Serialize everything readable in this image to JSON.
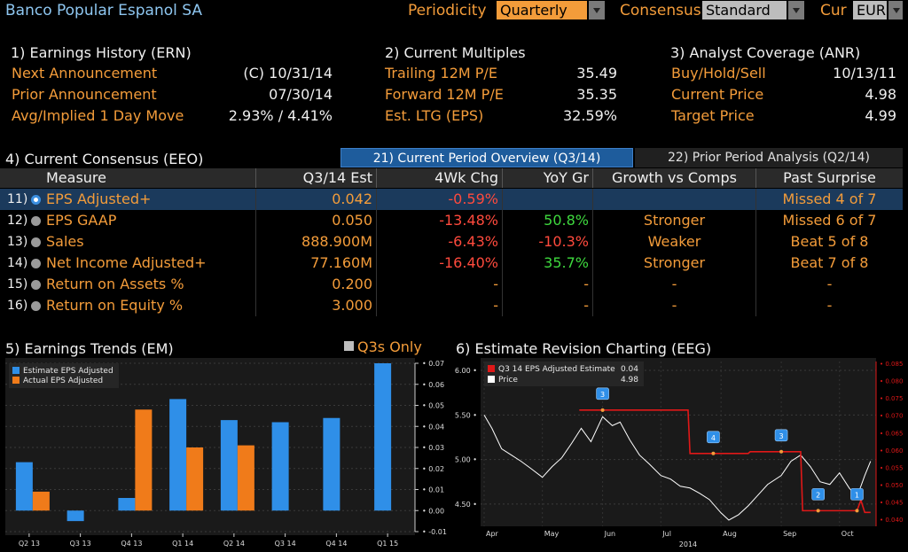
{
  "header": {
    "title": "Banco Popular Espanol SA",
    "periodicity_label": "Periodicity",
    "periodicity_value": "Quarterly",
    "consensus_label": "Consensus",
    "consensus_value": "Standard",
    "currency_label": "Cur",
    "currency_value": "EUR"
  },
  "earnings_history": {
    "title": "1) Earnings History (ERN)",
    "rows": [
      {
        "label": "Next Announcement",
        "value": "(C)  10/31/14"
      },
      {
        "label": "Prior Announcement",
        "value": "07/30/14"
      },
      {
        "label": "Avg/Implied 1 Day Move",
        "value": "2.93% / 4.41%"
      }
    ]
  },
  "current_multiples": {
    "title": "2) Current Multiples",
    "rows": [
      {
        "label": "Trailing 12M P/E",
        "value": "35.49"
      },
      {
        "label": "Forward 12M P/E",
        "value": "35.35"
      },
      {
        "label": "Est. LTG (EPS)",
        "value": "32.59%"
      }
    ]
  },
  "analyst_coverage": {
    "title": "3) Analyst Coverage (ANR)",
    "rows": [
      {
        "label": "Buy/Hold/Sell",
        "value": "10/13/11"
      },
      {
        "label": "Current Price",
        "value": "4.98"
      },
      {
        "label": "Target Price",
        "value": "4.99"
      }
    ]
  },
  "consensus": {
    "title": "4) Current Consensus (EEO)",
    "tab_active": "21) Current Period Overview (Q3/14)",
    "tab_inactive": "22) Prior Period Analysis (Q2/14)",
    "columns": [
      "Measure",
      "Q3/14 Est",
      "4Wk Chg",
      "YoY Gr",
      "Growth vs Comps",
      "Past Surprise"
    ],
    "rows": [
      {
        "num": "11)",
        "measure": "EPS Adjusted+",
        "est": "0.042",
        "chg": "-0.59%",
        "yoy": "",
        "comps": "",
        "surprise": "Missed 4 of 7",
        "yoy_color": "green"
      },
      {
        "num": "12)",
        "measure": "EPS GAAP",
        "est": "0.050",
        "chg": "-13.48%",
        "yoy": "50.8%",
        "comps": "Stronger",
        "surprise": "Missed 6 of 7",
        "yoy_color": "green"
      },
      {
        "num": "13)",
        "measure": "Sales",
        "est": "888.900M",
        "chg": "-6.43%",
        "yoy": "-10.3%",
        "comps": "Weaker",
        "surprise": "Beat 5 of 8",
        "yoy_color": "red"
      },
      {
        "num": "14)",
        "measure": "Net Income Adjusted+",
        "est": "77.160M",
        "chg": "-16.40%",
        "yoy": "35.7%",
        "comps": "Stronger",
        "surprise": "Beat 7 of 8",
        "yoy_color": "green"
      },
      {
        "num": "15)",
        "measure": "Return on Assets %",
        "est": "0.200",
        "chg": "-",
        "yoy": "-",
        "comps": "-",
        "surprise": "-",
        "yoy_color": "orange"
      },
      {
        "num": "16)",
        "measure": "Return on Equity %",
        "est": "3.000",
        "chg": "-",
        "yoy": "-",
        "comps": "-",
        "surprise": "-",
        "yoy_color": "orange"
      }
    ]
  },
  "colors": {
    "blue_bar": "#2f8fe8",
    "orange_bar": "#f07b1a",
    "estimate_line": "#e01818",
    "price_line": "#ffffff"
  },
  "chart_data": [
    {
      "type": "bar",
      "title": "5) Earnings Trends (EM)",
      "toggle_label": "Q3s Only",
      "categories": [
        "Q2 13",
        "Q3 13",
        "Q4 13",
        "Q1 14",
        "Q2 14",
        "Q3 14",
        "Q4 14",
        "Q1 15"
      ],
      "series": [
        {
          "name": "Estimate EPS Adjusted",
          "values": [
            0.023,
            -0.005,
            0.006,
            0.053,
            0.043,
            0.042,
            0.044,
            0.07
          ]
        },
        {
          "name": "Actual EPS Adjusted",
          "values": [
            0.009,
            null,
            0.048,
            0.03,
            0.031,
            null,
            null,
            null
          ]
        }
      ],
      "ylim": [
        -0.01,
        0.07
      ],
      "yticks": [
        "0.07",
        "0.06",
        "0.05",
        "0.04",
        "0.03",
        "0.02",
        "0.01",
        "0.00",
        "-0.01"
      ],
      "legend": "top-left"
    },
    {
      "type": "line",
      "title": "6) Estimate Revision Charting (EEG)",
      "series": [
        {
          "name": "Q3 14 EPS Adjusted Estimate",
          "last": "0.04",
          "axis": "right",
          "x": [
            "May 20",
            "Jul 15",
            "Jul 16",
            "Aug 15",
            "Aug 16",
            "Sep 11",
            "Sep 12",
            "Oct 10",
            "Oct 12",
            "Oct 14",
            "Oct 17"
          ],
          "y": [
            0.0715,
            0.0715,
            0.059,
            0.059,
            0.0595,
            0.0595,
            0.0425,
            0.0425,
            0.0455,
            0.042,
            0.042
          ]
        },
        {
          "name": "Price",
          "last": "4.98",
          "axis": "left",
          "x": [
            "Apr 1",
            "Apr 5",
            "Apr 10",
            "Apr 15",
            "Apr 20",
            "Apr 25",
            "May 1",
            "May 6",
            "May 11",
            "May 16",
            "May 21",
            "May 26",
            "Jun 1",
            "Jun 6",
            "Jun 10",
            "Jun 15",
            "Jun 20",
            "Jun 25",
            "Jul 1",
            "Jul 6",
            "Jul 11",
            "Jul 16",
            "Jul 21",
            "Jul 26",
            "Aug 1",
            "Aug 5",
            "Aug 10",
            "Aug 15",
            "Aug 20",
            "Aug 25",
            "Sep 1",
            "Sep 6",
            "Sep 11",
            "Sep 16",
            "Sep 21",
            "Sep 26",
            "Oct 1",
            "Oct 6",
            "Oct 10",
            "Oct 14",
            "Oct 17"
          ],
          "y": [
            5.5,
            5.35,
            5.12,
            5.05,
            4.98,
            4.9,
            4.8,
            4.92,
            5.02,
            5.18,
            5.35,
            5.2,
            5.48,
            5.38,
            5.42,
            5.22,
            5.05,
            4.95,
            4.82,
            4.78,
            4.7,
            4.68,
            4.62,
            4.55,
            4.4,
            4.32,
            4.38,
            4.48,
            4.6,
            4.72,
            4.82,
            4.98,
            5.05,
            4.92,
            4.75,
            4.72,
            4.85,
            4.68,
            4.58,
            4.82,
            4.98
          ]
        }
      ],
      "left_ylim": [
        4.25,
        6.1
      ],
      "left_yticks": [
        "6.00",
        "5.50",
        "5.00",
        "4.50"
      ],
      "right_ylim": [
        0.038,
        0.0855
      ],
      "right_yticks": [
        "0.085",
        "0.080",
        "0.075",
        "0.070",
        "0.065",
        "0.060",
        "0.055",
        "0.050",
        "0.045",
        "0.040"
      ],
      "xticks": [
        "Apr",
        "May",
        "Jun",
        "Jul",
        "Aug",
        "Sep",
        "Oct"
      ],
      "xlabel_year": "2014",
      "revision_markers": [
        {
          "label": "3",
          "x": "Jun 1",
          "y": 0.0715
        },
        {
          "label": "4",
          "x": "Jul 28",
          "y": 0.059
        },
        {
          "label": "3",
          "x": "Sep 1",
          "y": 0.0595
        },
        {
          "label": "2",
          "x": "Sep 20",
          "y": 0.0425
        },
        {
          "label": "1",
          "x": "Oct 10",
          "y": 0.0425
        }
      ]
    }
  ]
}
